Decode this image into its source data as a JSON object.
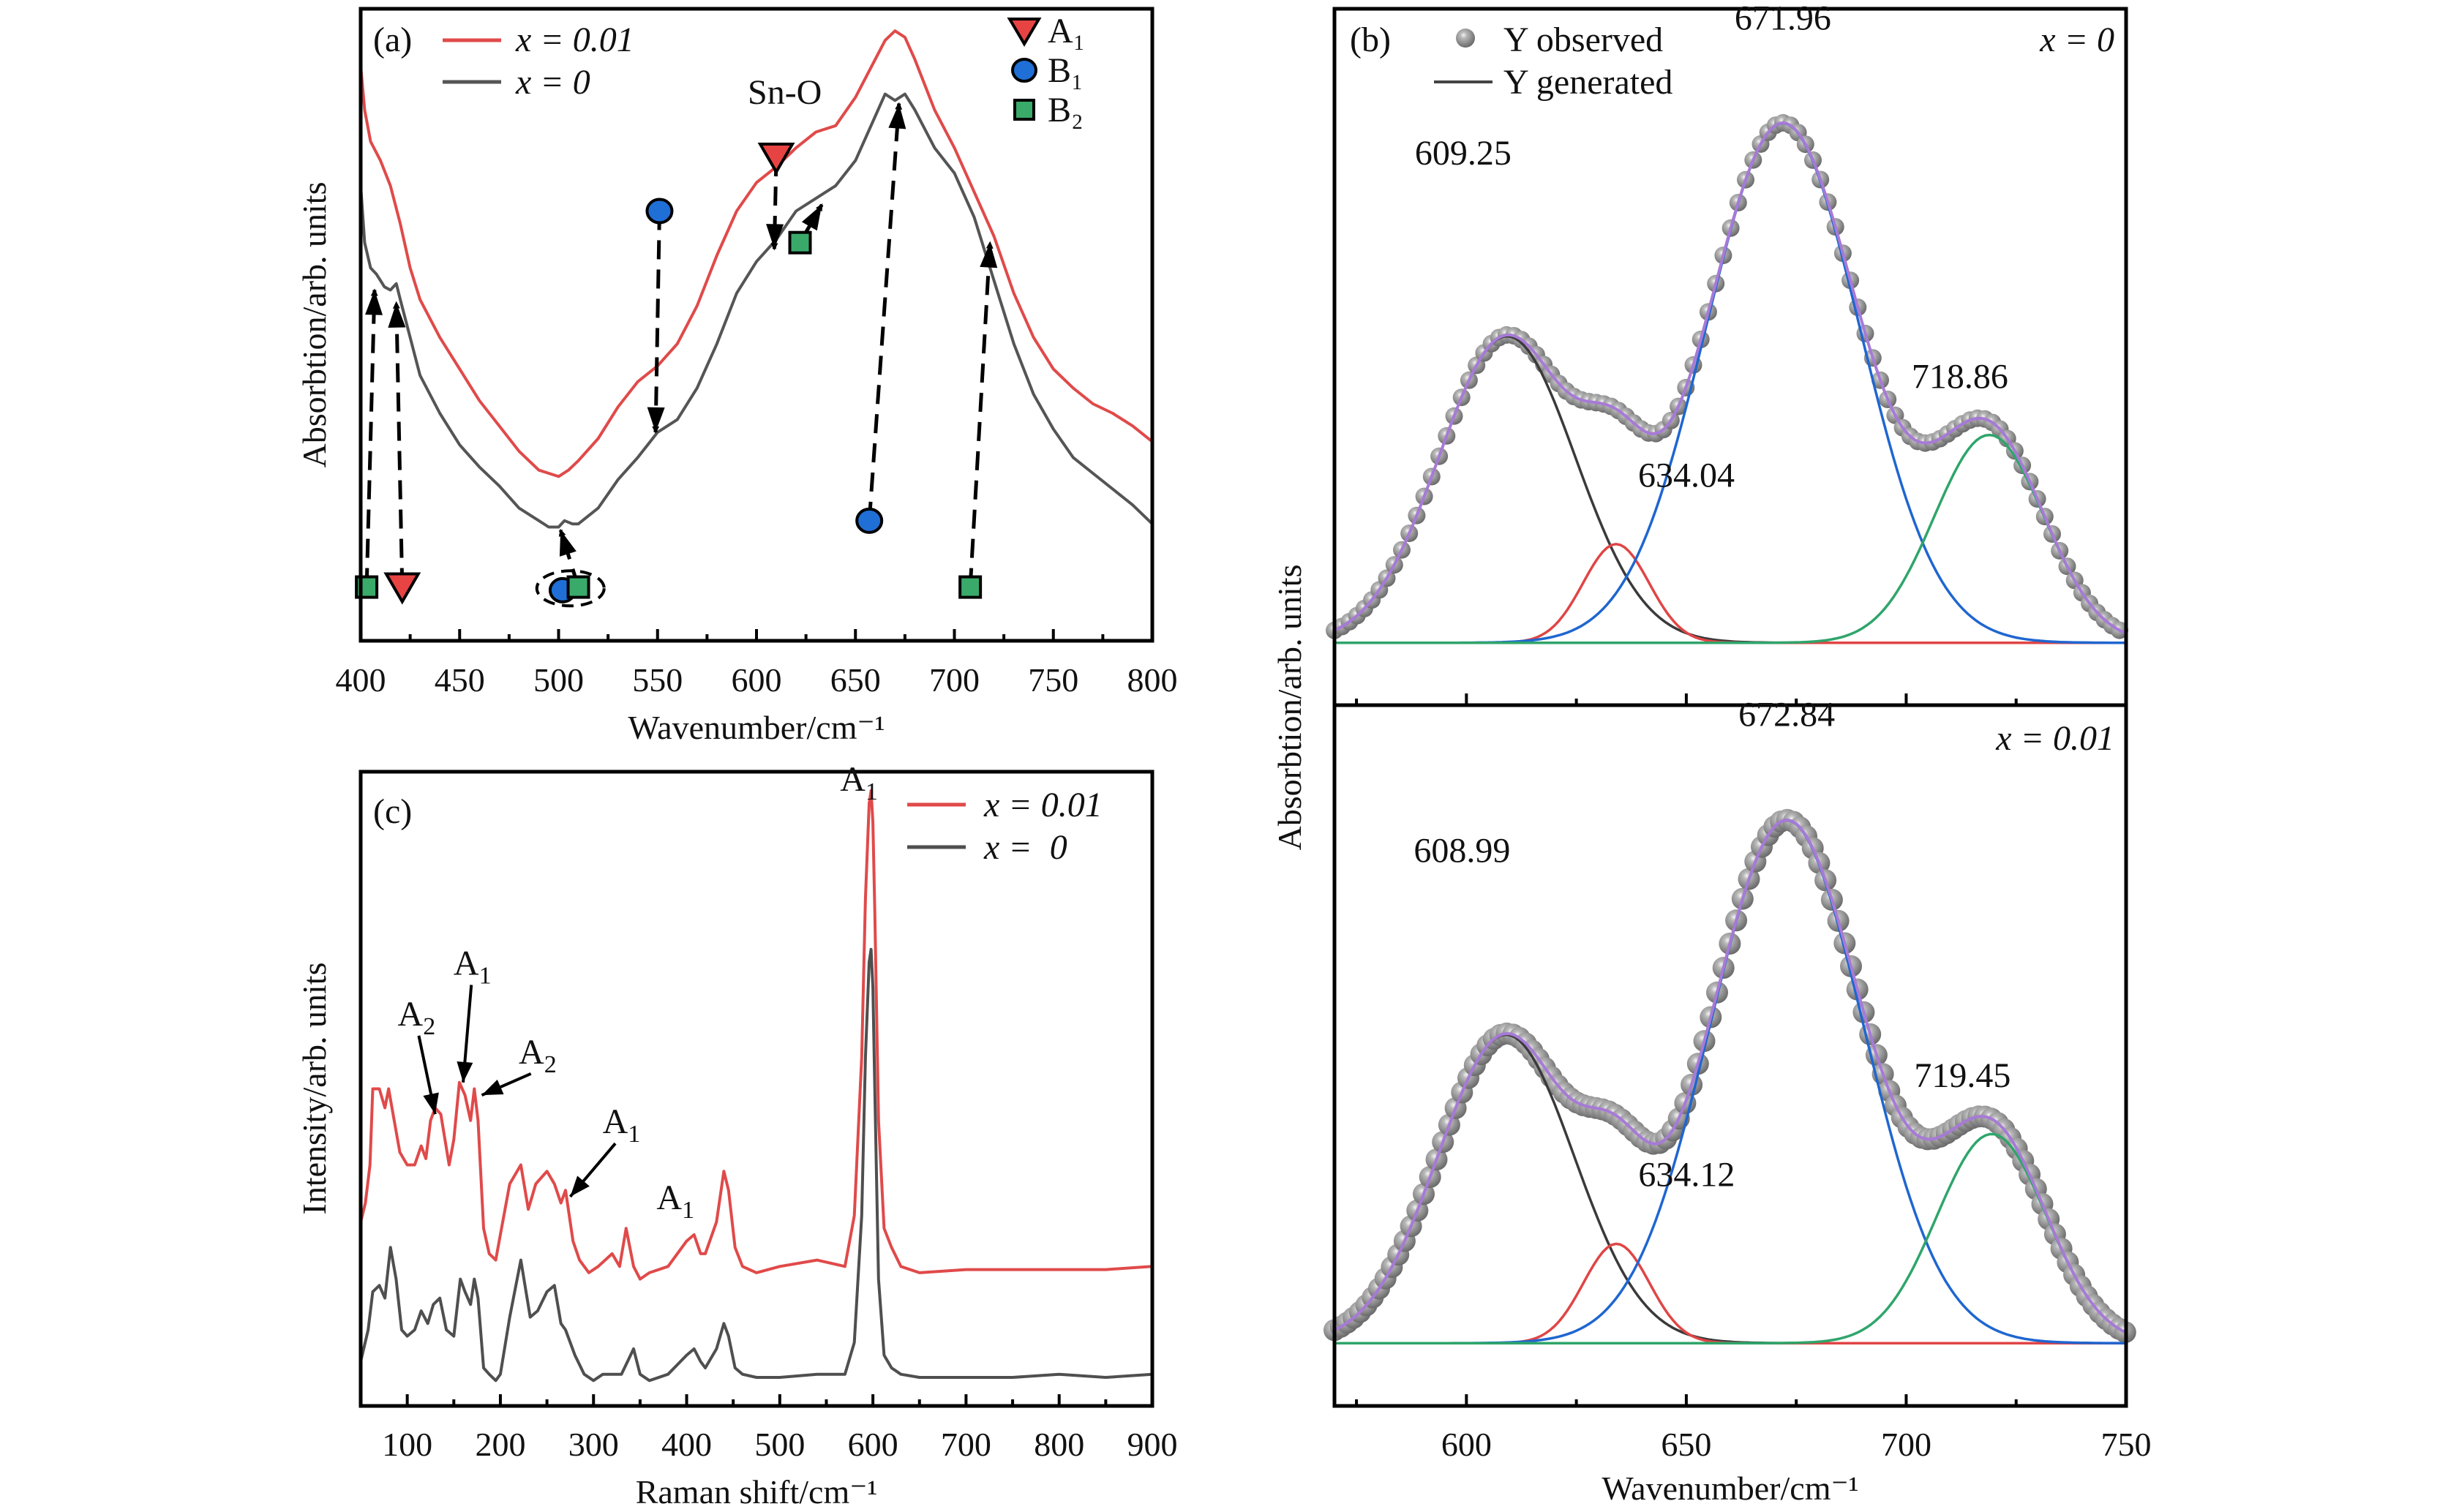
{
  "figure": {
    "panels": [
      "a",
      "b",
      "c"
    ]
  },
  "chart_data": [
    {
      "id": "a",
      "type": "line",
      "panel_label": "(a)",
      "title": "",
      "xlabel": "Wavenumber/cm⁻¹",
      "ylabel": "Absorbtion/arb. units",
      "xlim": [
        400,
        800
      ],
      "ylim": [
        0,
        100
      ],
      "xticks": [
        400,
        450,
        500,
        550,
        600,
        650,
        700,
        750,
        800
      ],
      "xtick_labels": [
        "400",
        "450",
        "500",
        "550",
        "600",
        "650",
        "700",
        "750",
        "800"
      ],
      "legend_position": "top-left",
      "annotation": "Sn-O",
      "series": [
        {
          "name": "x = 0.01",
          "color": "#e04a4a",
          "x": [
            400,
            402,
            405,
            410,
            415,
            420,
            425,
            430,
            440,
            450,
            460,
            470,
            480,
            490,
            495,
            500,
            505,
            510,
            520,
            530,
            540,
            550,
            560,
            570,
            580,
            590,
            600,
            610,
            620,
            630,
            640,
            650,
            660,
            665,
            670,
            675,
            680,
            690,
            700,
            710,
            720,
            730,
            740,
            750,
            760,
            770,
            780,
            790,
            800
          ],
          "y": [
            91,
            84,
            79,
            76,
            72,
            66,
            59,
            54,
            48,
            43,
            38,
            34,
            30,
            27,
            26.5,
            26,
            27,
            28.5,
            32,
            37,
            41,
            43.5,
            47,
            53,
            61,
            68,
            72.5,
            75,
            78,
            80.5,
            81.5,
            86,
            92,
            95,
            96.5,
            95.5,
            92,
            84,
            78,
            71,
            64,
            55,
            48,
            43,
            40,
            37.5,
            36,
            34,
            31.5
          ]
        },
        {
          "name": "x = 0",
          "color": "#555555",
          "x": [
            400,
            402,
            405,
            408,
            412,
            415,
            418,
            420,
            425,
            430,
            440,
            450,
            460,
            470,
            480,
            490,
            495,
            500,
            503,
            507,
            510,
            520,
            530,
            540,
            550,
            560,
            570,
            580,
            590,
            600,
            610,
            620,
            630,
            640,
            650,
            660,
            665,
            670,
            675,
            680,
            690,
            700,
            710,
            720,
            730,
            740,
            750,
            760,
            770,
            780,
            790,
            800
          ],
          "y": [
            72,
            63,
            59,
            58,
            56,
            55.5,
            56.5,
            54,
            48,
            42,
            36,
            31,
            27.5,
            24.5,
            21,
            19,
            18,
            18,
            19,
            18.5,
            18.5,
            21,
            25.5,
            29,
            33,
            35,
            40,
            47,
            55,
            60,
            63.5,
            68,
            70,
            72,
            76,
            83,
            86.5,
            85.5,
            86.5,
            84,
            78,
            74,
            67,
            57,
            47,
            39,
            33.5,
            29,
            26.5,
            24,
            21.5,
            18.5
          ]
        }
      ],
      "mode_legend": [
        {
          "name": "A₁",
          "marker": "triangle-down",
          "color": "#e84343"
        },
        {
          "name": "B₁",
          "marker": "circle",
          "color": "#1f6fd6"
        },
        {
          "name": "B₂",
          "marker": "square",
          "color": "#3aaa6a"
        }
      ],
      "mode_markers": [
        {
          "mode": "B2",
          "x": 403,
          "y": 8.5,
          "target": [
            407,
            55.5
          ]
        },
        {
          "mode": "A1",
          "x": 421,
          "y": 8.5,
          "target": [
            418,
            53.5
          ]
        },
        {
          "mode": "B1",
          "x": 502,
          "y": 8,
          "circled": true
        },
        {
          "mode": "B2",
          "x": 510,
          "y": 8.5,
          "circled": true,
          "target": [
            501,
            17.5
          ]
        },
        {
          "mode": "B1",
          "x": 551,
          "y": 68,
          "target": [
            549,
            33
          ]
        },
        {
          "mode": "A1",
          "x": 610,
          "y": 76.5,
          "target": [
            609,
            62
          ]
        },
        {
          "mode": "B2",
          "x": 622,
          "y": 63,
          "target": [
            633,
            69
          ]
        },
        {
          "mode": "B1",
          "x": 657,
          "y": 19,
          "target": [
            672,
            85
          ]
        },
        {
          "mode": "B2",
          "x": 708,
          "y": 8.5,
          "target": [
            718,
            63
          ]
        }
      ]
    },
    {
      "id": "b",
      "type": "line",
      "panel_label": "(b)",
      "xlabel": "Wavenumber/cm⁻¹",
      "ylabel": "Absorbtion/arb. units",
      "xlim": [
        570,
        750
      ],
      "ylim": [
        -0.05,
        1.15
      ],
      "xticks": [
        600,
        650,
        700,
        750
      ],
      "xtick_labels": [
        "600",
        "650",
        "700",
        "750"
      ],
      "legend": [
        "Y observed",
        "Y generated"
      ],
      "legend_position": "top-left",
      "colors": {
        "observed": "#8a8a8a",
        "generated": "#a77ad6",
        "peak1": "#3a3a3a",
        "peak2": "#e04545",
        "peak3": "#1f66d0",
        "peak4": "#2fa56b"
      },
      "subplots": [
        {
          "condition": "x = 0",
          "peaks": [
            {
              "center": 609.25,
              "label": "609.25",
              "amplitude": 0.59,
              "sigma": 15.5
            },
            {
              "center": 634.04,
              "label": "634.04",
              "amplitude": 0.19,
              "sigma": 7.5
            },
            {
              "center": 671.96,
              "label": "671.96",
              "amplitude": 1.0,
              "sigma": 17.5
            },
            {
              "center": 718.86,
              "label": "718.86",
              "amplitude": 0.4,
              "sigma": 12.5
            }
          ]
        },
        {
          "condition": "x = 0.01",
          "peaks": [
            {
              "center": 608.99,
              "label": "608.99",
              "amplitude": 0.59,
              "sigma": 15.5
            },
            {
              "center": 634.12,
              "label": "634.12",
              "amplitude": 0.19,
              "sigma": 7.5
            },
            {
              "center": 672.84,
              "label": "672.84",
              "amplitude": 1.0,
              "sigma": 17.5
            },
            {
              "center": 719.45,
              "label": "719.45",
              "amplitude": 0.4,
              "sigma": 12.5
            }
          ]
        }
      ]
    },
    {
      "id": "c",
      "type": "line",
      "panel_label": "(c)",
      "xlabel": "Raman shift/cm⁻¹",
      "ylabel": "Intensity/arb. units",
      "xlim": [
        50,
        900
      ],
      "ylim": [
        0,
        100
      ],
      "xticks": [
        100,
        200,
        300,
        400,
        500,
        600,
        700,
        800,
        900
      ],
      "xtick_labels": [
        "100",
        "200",
        "300",
        "400",
        "500",
        "600",
        "700",
        "800",
        "900"
      ],
      "legend_position": "top-right",
      "series": [
        {
          "name": "x = 0.01",
          "legend_label": "x = 0.01",
          "color": "#e04a4a",
          "x": [
            50,
            55,
            60,
            63,
            70,
            76,
            80,
            86,
            92,
            100,
            108,
            115,
            120,
            125,
            130,
            136,
            145,
            150,
            156,
            162,
            168,
            172,
            176,
            182,
            188,
            195,
            200,
            210,
            222,
            230,
            238,
            250,
            258,
            265,
            270,
            278,
            285,
            295,
            305,
            320,
            328,
            335,
            343,
            350,
            360,
            380,
            400,
            408,
            415,
            420,
            432,
            440,
            445,
            452,
            460,
            475,
            500,
            540,
            570,
            580,
            588,
            592,
            596,
            598,
            600,
            602,
            606,
            612,
            620,
            630,
            650,
            700,
            750,
            800,
            850,
            900
          ],
          "y": [
            29,
            32,
            38,
            50,
            50,
            47,
            50,
            45,
            40,
            38,
            38,
            41,
            39,
            45,
            47,
            46,
            38,
            42,
            51,
            49,
            45,
            50,
            45,
            28,
            24,
            23,
            27,
            35,
            38,
            31,
            35,
            37,
            35,
            32,
            34,
            26,
            23,
            21,
            22,
            24,
            22,
            28,
            22,
            20,
            21,
            22,
            26,
            27,
            24,
            24,
            29,
            37,
            34,
            25,
            22,
            21,
            22,
            23,
            22,
            30,
            55,
            80,
            95,
            97,
            92,
            78,
            45,
            28,
            25,
            22,
            21,
            21.5,
            21.5,
            21.5,
            21.5,
            22
          ]
        },
        {
          "name": "x = 0",
          "legend_label": "x =  0",
          "color": "#4f4f4f",
          "x": [
            50,
            58,
            63,
            70,
            76,
            82,
            88,
            94,
            100,
            108,
            115,
            122,
            128,
            135,
            142,
            150,
            157,
            162,
            168,
            172,
            176,
            182,
            188,
            195,
            200,
            210,
            222,
            232,
            240,
            250,
            258,
            265,
            270,
            280,
            290,
            300,
            310,
            330,
            343,
            350,
            360,
            380,
            400,
            408,
            415,
            420,
            432,
            440,
            445,
            452,
            460,
            475,
            500,
            540,
            570,
            580,
            588,
            592,
            596,
            598,
            600,
            602,
            606,
            612,
            620,
            630,
            650,
            700,
            750,
            800,
            850,
            900
          ],
          "y": [
            7,
            12,
            18,
            19,
            17,
            25,
            20,
            12,
            11,
            12,
            15,
            13,
            16,
            17,
            12,
            11,
            20,
            18,
            16,
            20,
            17,
            6,
            5,
            4,
            5,
            14,
            23,
            14,
            15,
            18,
            19,
            13,
            12,
            8,
            5,
            4,
            5,
            5,
            9,
            5,
            4,
            5,
            8,
            9,
            7,
            6,
            9,
            13,
            11,
            6,
            5,
            4.5,
            4.5,
            5,
            5,
            10,
            30,
            55,
            70,
            72,
            66,
            50,
            20,
            8,
            6,
            5,
            4.5,
            4.5,
            4.5,
            5,
            4.5,
            5
          ]
        }
      ],
      "annotations": [
        {
          "text": "A",
          "sub": "2",
          "pos": [
            110,
            60
          ],
          "arrow_to": [
            130,
            46
          ]
        },
        {
          "text": "A",
          "sub": "1",
          "pos": [
            170,
            68
          ],
          "arrow_to": [
            160,
            51
          ]
        },
        {
          "text": "A",
          "sub": "2",
          "pos": [
            240,
            54
          ],
          "arrow_to": [
            180,
            49
          ]
        },
        {
          "text": "A",
          "sub": "1",
          "pos": [
            330,
            43
          ],
          "arrow_to": [
            275,
            33
          ]
        },
        {
          "text": "A",
          "sub": "1",
          "pos": [
            388,
            31
          ],
          "arrow_to": null
        },
        {
          "text": "A",
          "sub": "1",
          "pos": [
            585,
            97
          ],
          "arrow_to": null
        }
      ]
    }
  ]
}
